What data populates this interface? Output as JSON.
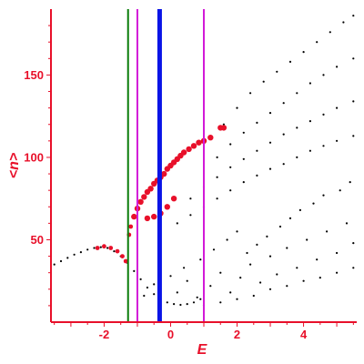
{
  "chart_data": {
    "type": "scatter",
    "title": "",
    "xlabel": "E",
    "ylabel": "<n>",
    "xlim": [
      -3.6,
      5.6
    ],
    "ylim": [
      0,
      190
    ],
    "xticks": [
      -2,
      0,
      2,
      4
    ],
    "yticks": [
      50,
      100,
      150
    ],
    "xtick_labels": [
      "-2",
      "0",
      "2",
      "4"
    ],
    "ytick_labels": [
      "50",
      "100",
      "150"
    ],
    "grid": false,
    "colors": {
      "axis": "#e8102a",
      "background_points": "#000000",
      "highlight_points": "#e8102a",
      "line_green": "#0a7d0a",
      "line_magenta": "#d21ad8",
      "line_blue": "#0a14e6"
    },
    "vertical_lines": [
      {
        "x": -1.28,
        "color": "green",
        "width": "thin"
      },
      {
        "x": -1.0,
        "color": "magenta",
        "width": "thin"
      },
      {
        "x": -0.33,
        "color": "blue",
        "width": "thick"
      },
      {
        "x": 1.0,
        "color": "magenta",
        "width": "thin"
      }
    ],
    "series": [
      {
        "role": "main branch (black)",
        "points": [
          [
            -3.5,
            35
          ],
          [
            -3.3,
            37
          ],
          [
            -3.1,
            39
          ],
          [
            -2.9,
            41
          ],
          [
            -2.7,
            42.5
          ],
          [
            -2.5,
            44
          ],
          [
            -2.3,
            45
          ],
          [
            -2.1,
            45.5
          ],
          [
            -1.9,
            45
          ],
          [
            -1.7,
            43
          ],
          [
            -1.5,
            40
          ],
          [
            -1.3,
            36
          ],
          [
            -1.1,
            31
          ],
          [
            -0.9,
            26
          ],
          [
            -0.7,
            21
          ],
          [
            -0.5,
            17
          ],
          [
            -0.3,
            14
          ],
          [
            -0.1,
            12
          ],
          [
            0.1,
            11
          ],
          [
            0.3,
            10.5
          ],
          [
            0.5,
            11
          ],
          [
            0.7,
            12
          ],
          [
            0.9,
            14
          ]
        ]
      },
      {
        "role": "upper branches (black)",
        "points": [
          [
            1.6,
            120
          ],
          [
            2.0,
            130
          ],
          [
            2.4,
            139
          ],
          [
            2.8,
            146
          ],
          [
            3.2,
            152
          ],
          [
            3.6,
            158
          ],
          [
            4.0,
            164
          ],
          [
            4.4,
            170
          ],
          [
            4.8,
            176
          ],
          [
            5.2,
            182
          ],
          [
            5.5,
            186
          ],
          [
            1.4,
            100
          ],
          [
            1.8,
            108
          ],
          [
            2.2,
            115
          ],
          [
            2.6,
            121
          ],
          [
            3.0,
            127
          ],
          [
            3.4,
            133
          ],
          [
            3.8,
            139
          ],
          [
            4.2,
            145
          ],
          [
            4.6,
            150
          ],
          [
            5.0,
            155
          ],
          [
            5.5,
            160
          ],
          [
            0.6,
            75
          ],
          [
            1.0,
            82
          ],
          [
            1.4,
            88
          ],
          [
            1.8,
            94
          ],
          [
            2.2,
            99
          ],
          [
            2.6,
            104
          ],
          [
            3.0,
            109
          ],
          [
            3.4,
            114
          ],
          [
            3.8,
            118
          ],
          [
            4.2,
            122
          ],
          [
            4.6,
            126
          ],
          [
            5.0,
            130
          ],
          [
            5.5,
            134
          ],
          [
            0.2,
            60
          ],
          [
            0.6,
            65
          ],
          [
            1.0,
            70
          ],
          [
            1.4,
            75
          ],
          [
            1.8,
            80
          ],
          [
            2.2,
            85
          ],
          [
            2.6,
            89
          ],
          [
            3.0,
            93
          ],
          [
            3.4,
            96
          ],
          [
            3.8,
            100
          ],
          [
            4.2,
            104
          ],
          [
            4.6,
            107
          ],
          [
            5.0,
            110
          ],
          [
            5.5,
            113
          ]
        ]
      },
      {
        "role": "lower scatter (black)",
        "points": [
          [
            -0.3,
            20
          ],
          [
            0.2,
            18
          ],
          [
            0.5,
            25
          ],
          [
            0.8,
            15
          ],
          [
            1.2,
            22
          ],
          [
            1.5,
            30
          ],
          [
            1.8,
            18
          ],
          [
            2.1,
            27
          ],
          [
            2.4,
            35
          ],
          [
            2.7,
            24
          ],
          [
            3.0,
            40
          ],
          [
            3.2,
            29
          ],
          [
            3.5,
            45
          ],
          [
            3.8,
            33
          ],
          [
            4.1,
            50
          ],
          [
            4.4,
            38
          ],
          [
            4.7,
            55
          ],
          [
            5.0,
            42
          ],
          [
            5.3,
            60
          ],
          [
            5.5,
            48
          ],
          [
            -0.8,
            16
          ],
          [
            -0.5,
            23
          ],
          [
            0.0,
            28
          ],
          [
            0.4,
            33
          ],
          [
            0.9,
            38
          ],
          [
            1.3,
            44
          ],
          [
            1.7,
            50
          ],
          [
            2.0,
            55
          ],
          [
            2.3,
            42
          ],
          [
            2.6,
            47
          ],
          [
            2.9,
            52
          ],
          [
            3.3,
            58
          ],
          [
            3.6,
            63
          ],
          [
            3.9,
            68
          ],
          [
            4.3,
            72
          ],
          [
            4.6,
            77
          ],
          [
            5.1,
            80
          ],
          [
            5.4,
            85
          ],
          [
            1.0,
            10
          ],
          [
            1.5,
            12
          ],
          [
            2.0,
            14
          ],
          [
            2.5,
            16
          ],
          [
            3.0,
            20
          ],
          [
            3.5,
            22
          ],
          [
            4.0,
            25
          ],
          [
            4.5,
            27
          ],
          [
            5.0,
            30
          ],
          [
            5.5,
            33
          ]
        ]
      },
      {
        "role": "highlighted branch (red)",
        "points": [
          [
            -2.2,
            45
          ],
          [
            -2.0,
            46
          ],
          [
            -1.8,
            45
          ],
          [
            -1.6,
            43
          ],
          [
            -1.45,
            40
          ],
          [
            -1.35,
            37
          ],
          [
            -1.25,
            53
          ],
          [
            -1.2,
            58
          ],
          [
            -1.1,
            64
          ],
          [
            -1.0,
            69
          ],
          [
            -0.9,
            73
          ],
          [
            -0.8,
            76
          ],
          [
            -0.7,
            79
          ],
          [
            -0.6,
            81
          ],
          [
            -0.5,
            84
          ],
          [
            -0.4,
            86
          ],
          [
            -0.3,
            88
          ],
          [
            -0.2,
            90
          ],
          [
            -0.1,
            93
          ],
          [
            0.0,
            95
          ],
          [
            0.1,
            97
          ],
          [
            0.2,
            99
          ],
          [
            0.3,
            101
          ],
          [
            0.4,
            103
          ],
          [
            0.55,
            105
          ],
          [
            0.7,
            107
          ],
          [
            0.85,
            109
          ],
          [
            1.0,
            110
          ],
          [
            1.2,
            112
          ],
          [
            1.5,
            118
          ],
          [
            1.6,
            118
          ],
          [
            -0.7,
            63
          ],
          [
            -0.5,
            64
          ],
          [
            -0.3,
            66
          ],
          [
            -0.1,
            70
          ],
          [
            0.1,
            75
          ]
        ]
      }
    ]
  }
}
